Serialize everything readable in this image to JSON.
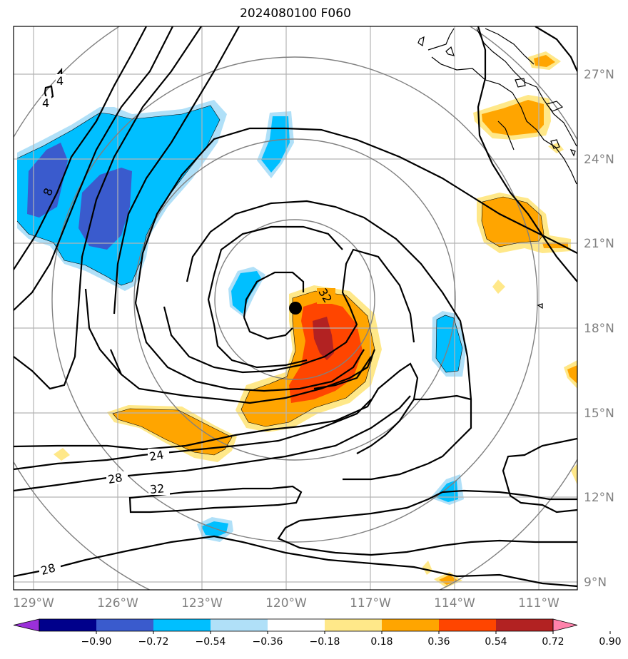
{
  "title": "2024080100 F060",
  "lat_labels": [
    "27°N",
    "24°N",
    "21°N",
    "18°N",
    "15°N",
    "12°N",
    "9°N"
  ],
  "lon_labels": [
    "129°W",
    "126°W",
    "123°W",
    "120°W",
    "117°W",
    "114°W",
    "111°W"
  ],
  "contour_labels": [
    "4",
    "4",
    "8",
    "32",
    "24",
    "28",
    "32",
    "28"
  ],
  "colorbar": {
    "ticks": [
      "−0.90",
      "−0.72",
      "−0.54",
      "−0.36",
      "−0.18",
      "0.18",
      "0.36",
      "0.54",
      "0.72",
      "0.90"
    ],
    "colors": [
      "#9b30d9",
      "#00008b",
      "#3a5bcd",
      "#00bfff",
      "#b0e0f8",
      "#ffffff",
      "#ffe889",
      "#ffa500",
      "#ff4500",
      "#b22222",
      "#ff82ab"
    ]
  },
  "storm_center": {
    "lon": "119.8°W",
    "lat": "18.7°N"
  }
}
